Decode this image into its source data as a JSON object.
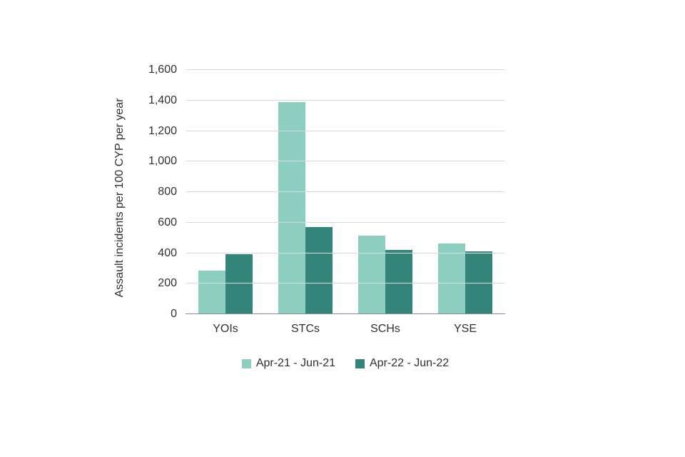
{
  "chart_data": {
    "type": "bar",
    "title": "",
    "categories": [
      "YOIs",
      "STCs",
      "SCHs",
      "YSE"
    ],
    "series": [
      {
        "name": "Apr-21 - Jun-21",
        "color": "#8ccfc0",
        "values": [
          280,
          1390,
          510,
          460
        ]
      },
      {
        "name": "Apr-22 - Jun-22",
        "color": "#348579",
        "values": [
          390,
          570,
          420,
          410
        ]
      }
    ],
    "xlabel": "",
    "ylabel": "Assault incidents per 100 CYP per year",
    "ylim": [
      0,
      1600
    ],
    "ytick_step": 200,
    "grid": "horizontal",
    "legend_position": "bottom"
  }
}
